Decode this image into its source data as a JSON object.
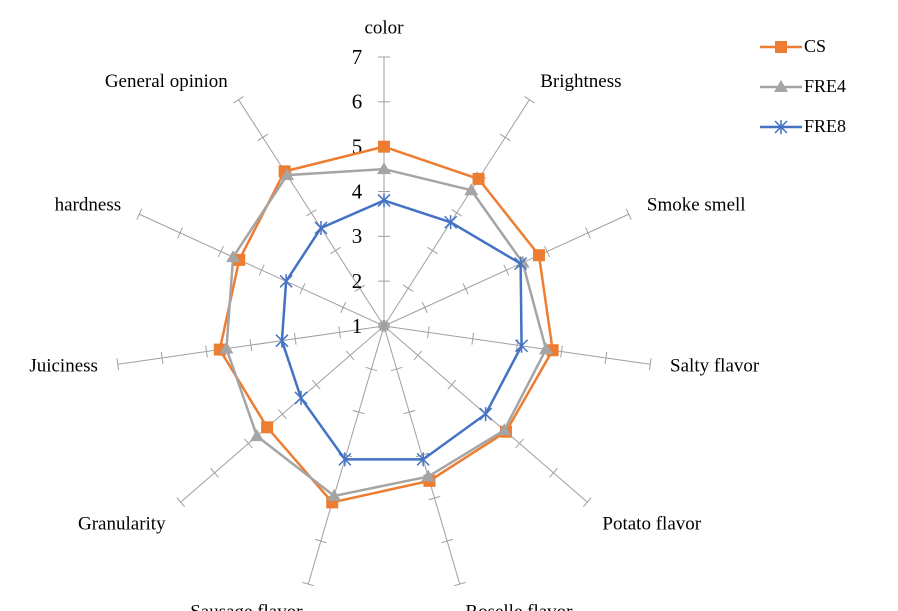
{
  "chart_data": {
    "type": "radar",
    "categories": [
      "color",
      "Brightness",
      "Smoke smell",
      "Salty flavor",
      "Potato flavor",
      "Roselle flavor",
      "Sausage flavor",
      "Granularity",
      "Juiciness",
      "hardness",
      "General opinion"
    ],
    "ylim": [
      1,
      7
    ],
    "yticks": [
      1,
      2,
      3,
      4,
      5,
      6,
      7
    ],
    "legend": "top-right",
    "series": [
      {
        "name": "CS",
        "color": "#ED7D31",
        "marker": "square",
        "values": [
          5.0,
          4.9,
          4.8,
          4.8,
          4.6,
          4.6,
          5.1,
          4.45,
          4.7,
          4.55,
          5.1
        ]
      },
      {
        "name": "FRE4",
        "color": "#A5A5A5",
        "marker": "triangle",
        "values": [
          4.5,
          4.6,
          4.4,
          4.65,
          4.55,
          4.5,
          4.95,
          4.75,
          4.55,
          4.7,
          5.0
        ]
      },
      {
        "name": "FRE8",
        "color": "#4472C4",
        "marker": "asterisk",
        "values": [
          3.8,
          3.75,
          4.35,
          4.1,
          4.0,
          4.1,
          4.1,
          3.45,
          3.3,
          3.4,
          3.6
        ]
      }
    ]
  }
}
